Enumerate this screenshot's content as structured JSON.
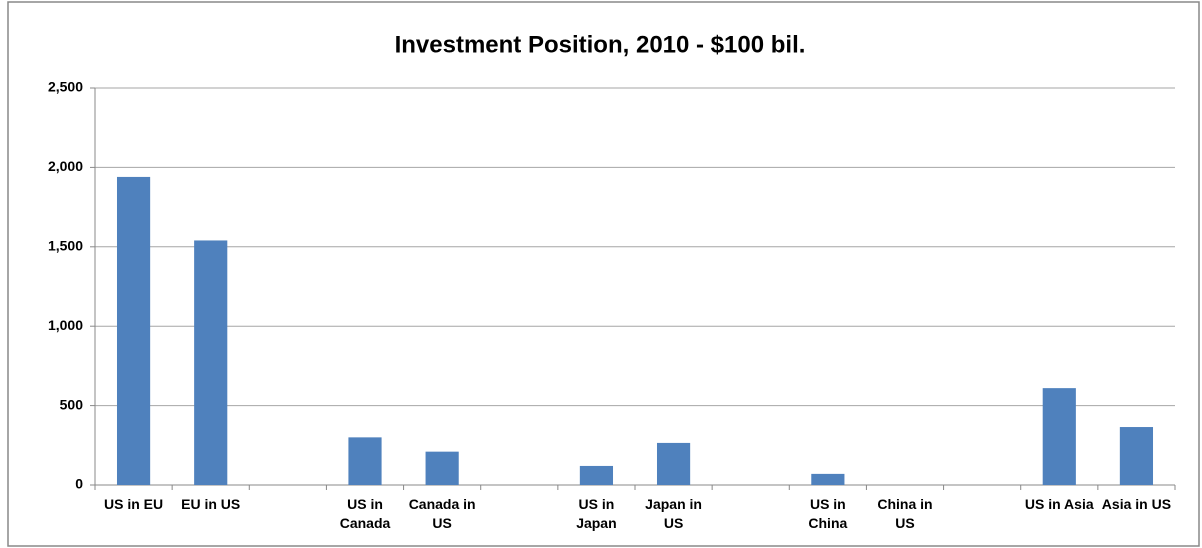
{
  "chart_data": {
    "type": "bar",
    "title": "Investment Position, 2010 - $100 bil.",
    "categories": [
      "US in EU",
      "EU in US",
      null,
      "US in Canada",
      "Canada in US",
      null,
      "US in Japan",
      "Japan in US",
      null,
      "US in China",
      "China in US",
      null,
      "US in Asia",
      "Asia in US"
    ],
    "values": [
      1940,
      1540,
      null,
      300,
      210,
      null,
      120,
      265,
      null,
      70,
      0,
      null,
      610,
      365
    ],
    "color": "#4f81bd",
    "ylim": [
      0,
      2500
    ],
    "yticks": [
      0,
      {
        "value": 500,
        "label": "500"
      },
      {
        "value": 1000,
        "label": "1,000"
      },
      {
        "value": 1500,
        "label": "1,500"
      },
      {
        "value": 2000,
        "label": "2,000"
      },
      {
        "value": 2500,
        "label": "2,500"
      }
    ],
    "grid": true
  }
}
